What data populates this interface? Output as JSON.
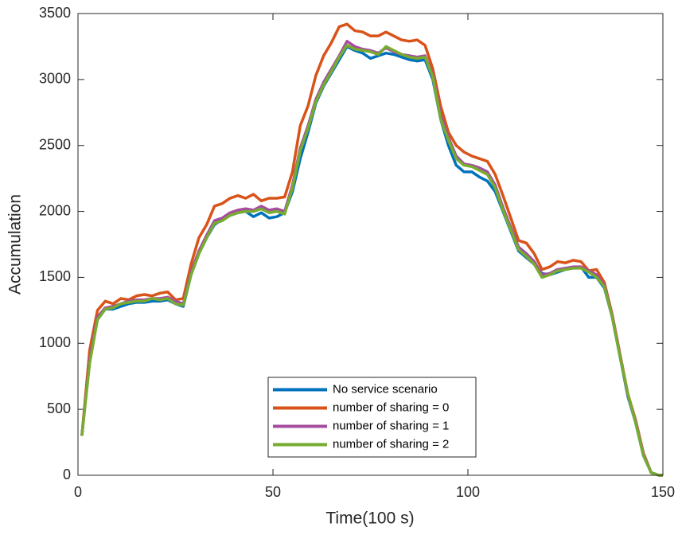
{
  "chart_data": {
    "type": "line",
    "x_label": "Time(100 s)",
    "y_label": "Accumulation",
    "x": [
      1,
      3,
      5,
      7,
      9,
      11,
      13,
      15,
      17,
      19,
      21,
      23,
      25,
      27,
      29,
      31,
      33,
      35,
      37,
      39,
      41,
      43,
      45,
      47,
      49,
      51,
      53,
      55,
      57,
      59,
      61,
      63,
      65,
      67,
      69,
      71,
      73,
      75,
      77,
      79,
      81,
      83,
      85,
      87,
      89,
      91,
      93,
      95,
      97,
      99,
      101,
      103,
      105,
      107,
      109,
      111,
      113,
      115,
      117,
      119,
      121,
      123,
      125,
      127,
      129,
      131,
      133,
      135,
      137,
      139,
      141,
      143,
      145,
      147,
      149,
      150
    ],
    "series": [
      {
        "name": "No service scenario",
        "color": "#0072bd",
        "values": [
          300,
          900,
          1180,
          1260,
          1260,
          1280,
          1300,
          1310,
          1310,
          1320,
          1320,
          1330,
          1300,
          1280,
          1520,
          1680,
          1800,
          1900,
          1940,
          1970,
          1990,
          2000,
          1960,
          1990,
          1950,
          1960,
          1990,
          2150,
          2400,
          2600,
          2820,
          2950,
          3050,
          3150,
          3250,
          3220,
          3200,
          3160,
          3180,
          3200,
          3190,
          3170,
          3150,
          3140,
          3150,
          3000,
          2700,
          2500,
          2350,
          2300,
          2300,
          2260,
          2230,
          2150,
          2000,
          1850,
          1700,
          1650,
          1600,
          1530,
          1520,
          1540,
          1560,
          1570,
          1580,
          1500,
          1500,
          1420,
          1200,
          900,
          600,
          400,
          150,
          20,
          0,
          0
        ]
      },
      {
        "name": "number of sharing = 0",
        "color": "#d95319",
        "values": [
          300,
          950,
          1250,
          1320,
          1300,
          1340,
          1330,
          1360,
          1370,
          1360,
          1380,
          1390,
          1330,
          1340,
          1600,
          1800,
          1900,
          2040,
          2060,
          2100,
          2120,
          2100,
          2130,
          2080,
          2100,
          2100,
          2110,
          2300,
          2650,
          2800,
          3030,
          3180,
          3280,
          3400,
          3420,
          3370,
          3360,
          3330,
          3330,
          3360,
          3330,
          3300,
          3290,
          3300,
          3260,
          3080,
          2800,
          2600,
          2500,
          2450,
          2420,
          2400,
          2380,
          2280,
          2120,
          1950,
          1780,
          1760,
          1680,
          1560,
          1580,
          1620,
          1610,
          1630,
          1620,
          1550,
          1560,
          1460,
          1220,
          920,
          620,
          420,
          170,
          20,
          0,
          0
        ]
      },
      {
        "name": "number of sharing = 1",
        "color": "#a64d9f",
        "values": [
          300,
          880,
          1200,
          1270,
          1280,
          1300,
          1320,
          1330,
          1330,
          1340,
          1340,
          1350,
          1320,
          1300,
          1540,
          1700,
          1820,
          1930,
          1950,
          1990,
          2010,
          2020,
          2010,
          2040,
          2010,
          2020,
          2000,
          2200,
          2480,
          2650,
          2850,
          2980,
          3080,
          3180,
          3290,
          3250,
          3230,
          3220,
          3200,
          3240,
          3210,
          3190,
          3180,
          3170,
          3180,
          3030,
          2730,
          2560,
          2420,
          2360,
          2350,
          2330,
          2300,
          2200,
          2030,
          1880,
          1730,
          1680,
          1620,
          1520,
          1530,
          1560,
          1570,
          1580,
          1580,
          1550,
          1520,
          1440,
          1210,
          910,
          610,
          410,
          160,
          20,
          0,
          0
        ]
      },
      {
        "name": "number of sharing = 2",
        "color": "#77ac30",
        "values": [
          300,
          850,
          1180,
          1260,
          1270,
          1300,
          1310,
          1320,
          1320,
          1340,
          1330,
          1340,
          1300,
          1290,
          1520,
          1680,
          1800,
          1910,
          1930,
          1970,
          1990,
          2000,
          2000,
          2020,
          1990,
          2000,
          1980,
          2180,
          2460,
          2630,
          2830,
          2960,
          3060,
          3170,
          3260,
          3230,
          3220,
          3210,
          3190,
          3250,
          3220,
          3190,
          3170,
          3160,
          3170,
          3020,
          2700,
          2540,
          2400,
          2350,
          2340,
          2310,
          2280,
          2180,
          2010,
          1860,
          1710,
          1660,
          1600,
          1500,
          1520,
          1550,
          1560,
          1570,
          1570,
          1540,
          1500,
          1430,
          1200,
          900,
          620,
          400,
          150,
          20,
          0,
          0
        ]
      }
    ],
    "xlim": [
      0,
      150
    ],
    "xticks": [
      0,
      50,
      100,
      150
    ],
    "ylim": [
      0,
      3500
    ],
    "yticks": [
      0,
      500,
      1000,
      1500,
      2000,
      2500,
      3000,
      3500
    ],
    "legend": "bottom"
  }
}
